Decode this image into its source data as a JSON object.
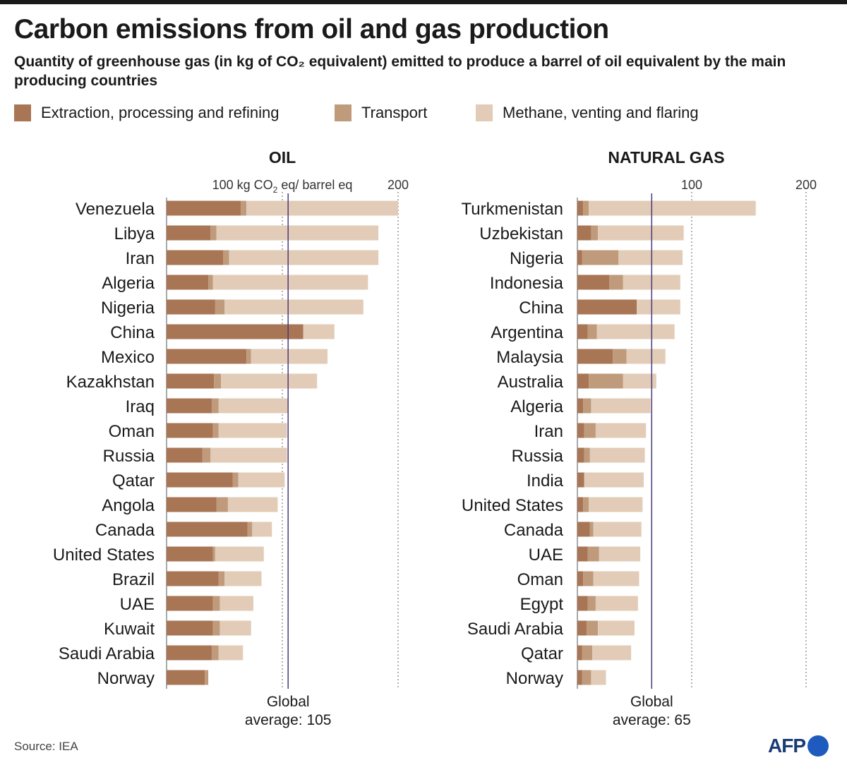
{
  "header": {
    "title": "Carbon emissions from oil and gas production",
    "subtitle": "Quantity of greenhouse gas (in kg of CO₂ equivalent) emitted to produce a barrel of oil equivalent by the main producing countries"
  },
  "legend": [
    {
      "label": "Extraction, processing and refining",
      "color": "#a87555"
    },
    {
      "label": "Transport",
      "color": "#bf9b7c"
    },
    {
      "label": "Methane, venting and flaring",
      "color": "#e2ccb7"
    }
  ],
  "colors": {
    "extraction": "#a87555",
    "transport": "#bf9b7c",
    "methane": "#e2ccb7",
    "average_line": "#4a3a7a",
    "grid": "#888888"
  },
  "chart_data": [
    {
      "type": "bar",
      "stacked": true,
      "orientation": "horizontal",
      "title": "OIL",
      "unit_label": "100 kg  CO",
      "unit_sub": "2",
      "unit_tail": " eq/ barrel eq",
      "xlim": [
        0,
        200
      ],
      "ticks": [
        100,
        200
      ],
      "tick_labels": [
        "",
        "200"
      ],
      "average": 105,
      "average_label": [
        "Global",
        "average: 105"
      ],
      "categories": [
        "Venezuela",
        "Libya",
        "Iran",
        "Algeria",
        "Nigeria",
        "China",
        "Mexico",
        "Kazakhstan",
        "Iraq",
        "Oman",
        "Russia",
        "Qatar",
        "Angola",
        "Canada",
        "United States",
        "Brazil",
        "UAE",
        "Kuwait",
        "Saudi Arabia",
        "Norway"
      ],
      "series": [
        {
          "name": "Extraction, processing and refining",
          "values": [
            64,
            38,
            49,
            36,
            42,
            118,
            69,
            41,
            39,
            40,
            31,
            57,
            43,
            70,
            40,
            45,
            40,
            40,
            39,
            33
          ]
        },
        {
          "name": "Transport",
          "values": [
            5,
            5,
            5,
            4,
            8,
            0,
            4,
            6,
            6,
            5,
            7,
            5,
            10,
            4,
            2,
            5,
            6,
            6,
            6,
            3
          ]
        },
        {
          "name": "Methane, venting and flaring",
          "values": [
            131,
            140,
            129,
            134,
            120,
            27,
            66,
            83,
            60,
            59,
            66,
            40,
            43,
            17,
            42,
            32,
            29,
            27,
            21,
            0
          ]
        }
      ]
    },
    {
      "type": "bar",
      "stacked": true,
      "orientation": "horizontal",
      "title": "NATURAL GAS",
      "xlim": [
        0,
        200
      ],
      "ticks": [
        100,
        200
      ],
      "tick_labels": [
        "100",
        "200"
      ],
      "average": 65,
      "average_label": [
        "Global",
        "average: 65"
      ],
      "categories": [
        "Turkmenistan",
        "Uzbekistan",
        "Nigeria",
        "Indonesia",
        "China",
        "Argentina",
        "Malaysia",
        "Australia",
        "Algeria",
        "Iran",
        "Russia",
        "India",
        "United States",
        "Canada",
        "UAE",
        "Oman",
        "Egypt",
        "Saudi Arabia",
        "Qatar",
        "Norway"
      ],
      "series": [
        {
          "name": "Extraction, processing and refining",
          "values": [
            5,
            12,
            4,
            28,
            52,
            9,
            31,
            10,
            5,
            6,
            6,
            6,
            5,
            11,
            9,
            5,
            9,
            8,
            4,
            4
          ]
        },
        {
          "name": "Transport",
          "values": [
            5,
            6,
            32,
            12,
            0,
            8,
            12,
            30,
            7,
            10,
            5,
            0,
            5,
            3,
            10,
            9,
            7,
            10,
            9,
            8
          ]
        },
        {
          "name": "Methane, venting and flaring",
          "values": [
            146,
            75,
            56,
            50,
            38,
            68,
            34,
            29,
            52,
            44,
            48,
            52,
            47,
            42,
            36,
            40,
            37,
            32,
            34,
            13
          ]
        }
      ]
    }
  ],
  "footer": {
    "source": "Source: IEA",
    "logo": "AFP"
  }
}
